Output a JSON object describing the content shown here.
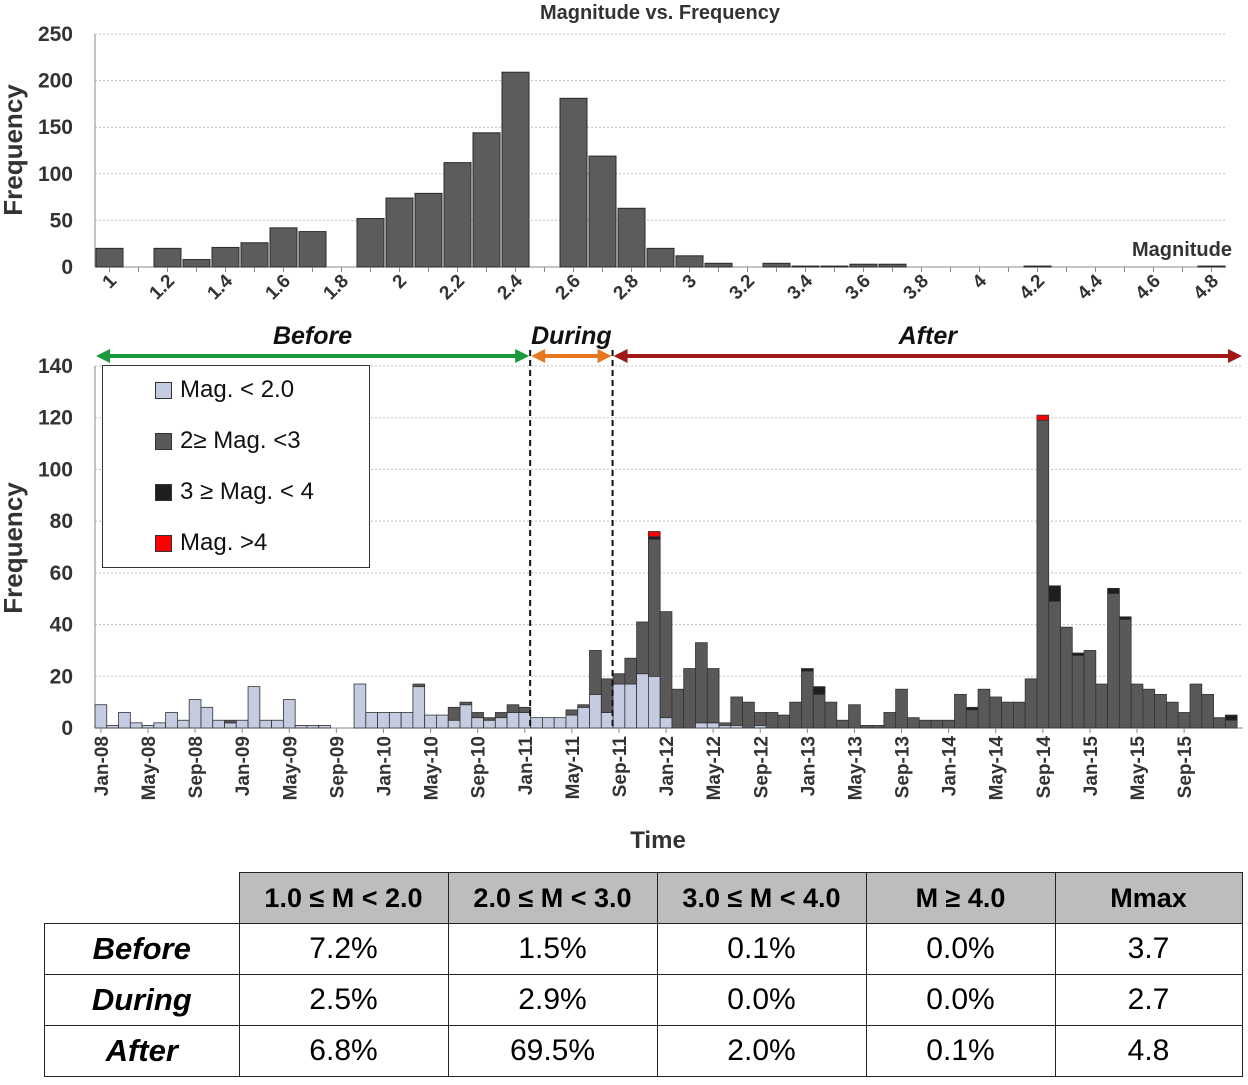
{
  "chart_data": [
    {
      "type": "bar",
      "title": "Magnitude vs. Frequency",
      "xlabel": "Magnitude",
      "ylabel": "Frequency",
      "ylim": [
        0,
        250
      ],
      "yticks": [
        0,
        50,
        100,
        150,
        200,
        250
      ],
      "grid": true,
      "tick_labels": [
        "1",
        "1.2",
        "1.4",
        "1.6",
        "1.8",
        "2",
        "2.2",
        "2.4",
        "2.6",
        "2.8",
        "3",
        "3.2",
        "3.4",
        "3.6",
        "3.8",
        "4",
        "4.2",
        "4.4",
        "4.6",
        "4.8"
      ],
      "bins": [
        1.0,
        1.1,
        1.2,
        1.3,
        1.4,
        1.5,
        1.6,
        1.7,
        1.8,
        1.9,
        2.0,
        2.1,
        2.2,
        2.3,
        2.4,
        2.5,
        2.6,
        2.7,
        2.8,
        2.9,
        3.0,
        3.1,
        3.2,
        3.3,
        3.4,
        3.5,
        3.6,
        3.7,
        3.8,
        3.9,
        4.0,
        4.1,
        4.2,
        4.3,
        4.4,
        4.5,
        4.6,
        4.7,
        4.8
      ],
      "values": [
        20,
        0,
        20,
        8,
        21,
        26,
        42,
        38,
        0,
        52,
        74,
        79,
        112,
        144,
        209,
        0,
        181,
        119,
        63,
        20,
        12,
        4,
        0,
        4,
        1,
        1,
        3,
        3,
        0,
        0,
        0,
        0,
        1,
        0,
        0,
        0,
        0,
        0,
        1
      ]
    },
    {
      "type": "bar",
      "stacked": true,
      "xlabel": "Time",
      "ylabel": "Frequency",
      "ylim": [
        0,
        140
      ],
      "yticks": [
        0,
        20,
        40,
        60,
        80,
        100,
        120,
        140
      ],
      "grid": true,
      "tick_labels": [
        "Jan-08",
        "May-08",
        "Sep-08",
        "Jan-09",
        "May-09",
        "Sep-09",
        "Jan-10",
        "May-10",
        "Sep-10",
        "Jan-11",
        "May-11",
        "Sep-11",
        "Jan-12",
        "May-12",
        "Sep-12",
        "Jan-13",
        "May-13",
        "Sep-13",
        "Jan-14",
        "May-14",
        "Sep-14",
        "Jan-15",
        "May-15",
        "Sep-15"
      ],
      "periods": [
        {
          "name": "Before",
          "color": "#1a9a3a"
        },
        {
          "name": "During",
          "color": "#e87722"
        },
        {
          "name": "After",
          "color": "#a01818"
        }
      ],
      "legend": [
        "Mag. < 2.0",
        "2≥ Mag. <3",
        "3 ≥ Mag. < 4",
        "Mag. >4"
      ],
      "series": [
        {
          "name": "Mag. < 2.0",
          "color": "#c5cbe0",
          "values": [
            9,
            1,
            6,
            2,
            1,
            2,
            6,
            3,
            11,
            8,
            3,
            2,
            3,
            16,
            3,
            3,
            11,
            1,
            1,
            1,
            0,
            0,
            17,
            6,
            6,
            6,
            6,
            16,
            5,
            5,
            3,
            9,
            4,
            3,
            4,
            6,
            6,
            4,
            4,
            4,
            5,
            8,
            13,
            6,
            17,
            17,
            21,
            20,
            4,
            0,
            0,
            2,
            2,
            1,
            1,
            0,
            1,
            0,
            0,
            0,
            0,
            0,
            0,
            0,
            0,
            0,
            0,
            0,
            0,
            0,
            0,
            0,
            0,
            0,
            0,
            0,
            0,
            0,
            0,
            0,
            0,
            0,
            0,
            0,
            0,
            0,
            0,
            0,
            0,
            0,
            0,
            0,
            0,
            0,
            0,
            0,
            0
          ]
        },
        {
          "name": "2≥ Mag. <3",
          "color": "#5a5858",
          "values": [
            0,
            0,
            0,
            0,
            0,
            0,
            0,
            0,
            0,
            0,
            0,
            1,
            0,
            0,
            0,
            0,
            0,
            0,
            0,
            0,
            0,
            0,
            0,
            0,
            0,
            0,
            0,
            1,
            0,
            0,
            5,
            1,
            2,
            1,
            2,
            3,
            2,
            0,
            0,
            0,
            2,
            1,
            17,
            13,
            4,
            10,
            20,
            53,
            41,
            15,
            23,
            31,
            21,
            1,
            11,
            10,
            5,
            6,
            5,
            10,
            22,
            13,
            10,
            3,
            9,
            1,
            1,
            6,
            15,
            4,
            3,
            3,
            3,
            13,
            7,
            15,
            12,
            10,
            10,
            19,
            119,
            49,
            39,
            28,
            30,
            17,
            52,
            42,
            17,
            15,
            13,
            10,
            6,
            17,
            13,
            4,
            3
          ]
        },
        {
          "name": "3 ≥ Mag. < 4",
          "color": "#1e1e1e",
          "values": [
            0,
            0,
            0,
            0,
            0,
            0,
            0,
            0,
            0,
            0,
            0,
            0,
            0,
            0,
            0,
            0,
            0,
            0,
            0,
            0,
            0,
            0,
            0,
            0,
            0,
            0,
            0,
            0,
            0,
            0,
            0,
            0,
            0,
            0,
            0,
            0,
            0,
            0,
            0,
            0,
            0,
            0,
            0,
            0,
            0,
            0,
            0,
            1,
            0,
            0,
            0,
            0,
            0,
            0,
            0,
            0,
            0,
            0,
            0,
            0,
            1,
            3,
            0,
            0,
            0,
            0,
            0,
            0,
            0,
            0,
            0,
            0,
            0,
            0,
            1,
            0,
            0,
            0,
            0,
            0,
            0,
            6,
            0,
            1,
            0,
            0,
            2,
            1,
            0,
            0,
            0,
            0,
            0,
            0,
            0,
            0,
            2
          ]
        },
        {
          "name": "Mag. >4",
          "color": "#ff0000",
          "values": [
            0,
            0,
            0,
            0,
            0,
            0,
            0,
            0,
            0,
            0,
            0,
            0,
            0,
            0,
            0,
            0,
            0,
            0,
            0,
            0,
            0,
            0,
            0,
            0,
            0,
            0,
            0,
            0,
            0,
            0,
            0,
            0,
            0,
            0,
            0,
            0,
            0,
            0,
            0,
            0,
            0,
            0,
            0,
            0,
            0,
            0,
            0,
            2,
            0,
            0,
            0,
            0,
            0,
            0,
            0,
            0,
            0,
            0,
            0,
            0,
            0,
            0,
            0,
            0,
            0,
            0,
            0,
            0,
            0,
            0,
            0,
            0,
            0,
            0,
            0,
            0,
            0,
            0,
            0,
            0,
            2,
            0,
            0,
            0,
            0,
            0,
            0,
            0,
            0,
            0,
            0,
            0,
            0,
            0,
            0,
            0,
            0
          ]
        }
      ],
      "period_boundaries_month_index": [
        37,
        44
      ]
    },
    {
      "type": "table",
      "columns": [
        "1.0 ≤ M < 2.0",
        "2.0 ≤ M < 3.0",
        "3.0 ≤ M < 4.0",
        "M ≥ 4.0",
        "Mmax"
      ],
      "rows": [
        {
          "label": "Before",
          "cells": [
            "7.2%",
            "1.5%",
            "0.1%",
            "0.0%",
            "3.7"
          ]
        },
        {
          "label": "During",
          "cells": [
            "2.5%",
            "2.9%",
            "0.0%",
            "0.0%",
            "2.7"
          ]
        },
        {
          "label": "After",
          "cells": [
            "6.8%",
            "69.5%",
            "2.0%",
            "0.1%",
            "4.8"
          ]
        }
      ]
    }
  ]
}
